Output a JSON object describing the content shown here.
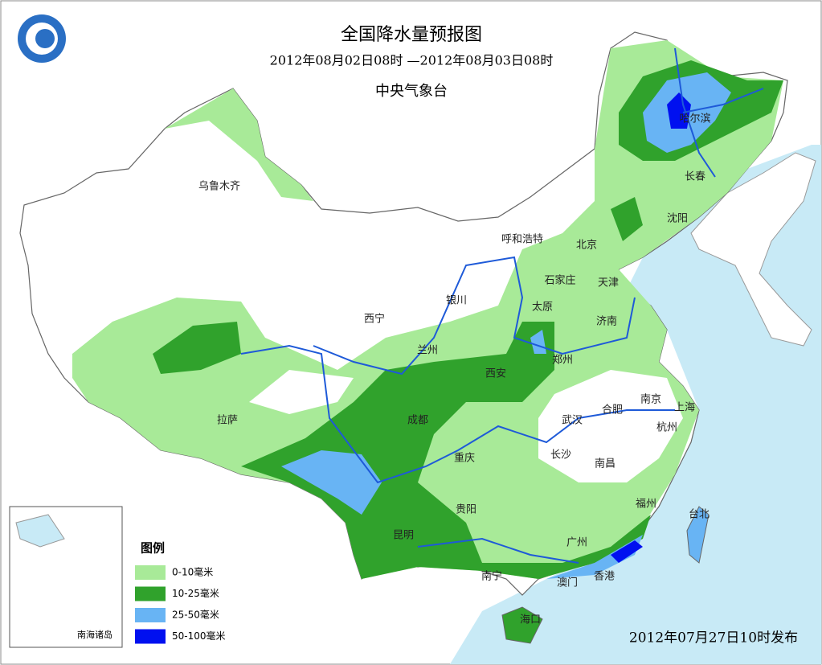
{
  "header": {
    "title": "全国降水量预报图",
    "period": "2012年08月02日08时 —2012年08月03日08时",
    "issuer": "中央气象台"
  },
  "cities": [
    "乌鲁木齐",
    "呼和浩特",
    "北京",
    "哈尔滨",
    "长春",
    "沈阳",
    "石家庄",
    "天津",
    "太原",
    "银川",
    "西宁",
    "兰州",
    "济南",
    "郑州",
    "西安",
    "拉萨",
    "成都",
    "武汉",
    "合肥",
    "南京",
    "上海",
    "杭州",
    "重庆",
    "长沙",
    "南昌",
    "贵阳",
    "福州",
    "台北",
    "昆明",
    "广州",
    "南宁",
    "澳门",
    "香港",
    "海口"
  ],
  "legend": {
    "title": "图例",
    "items": [
      {
        "label": "0-10毫米",
        "color": "#a8ea98"
      },
      {
        "label": "10-25毫米",
        "color": "#30a22c"
      },
      {
        "label": "25-50毫米",
        "color": "#68b4f4"
      },
      {
        "label": "50-100毫米",
        "color": "#0010f0"
      }
    ]
  },
  "inset": {
    "label": "南海诸岛"
  },
  "footer": {
    "issued": "2012年07月27日10时发布"
  }
}
